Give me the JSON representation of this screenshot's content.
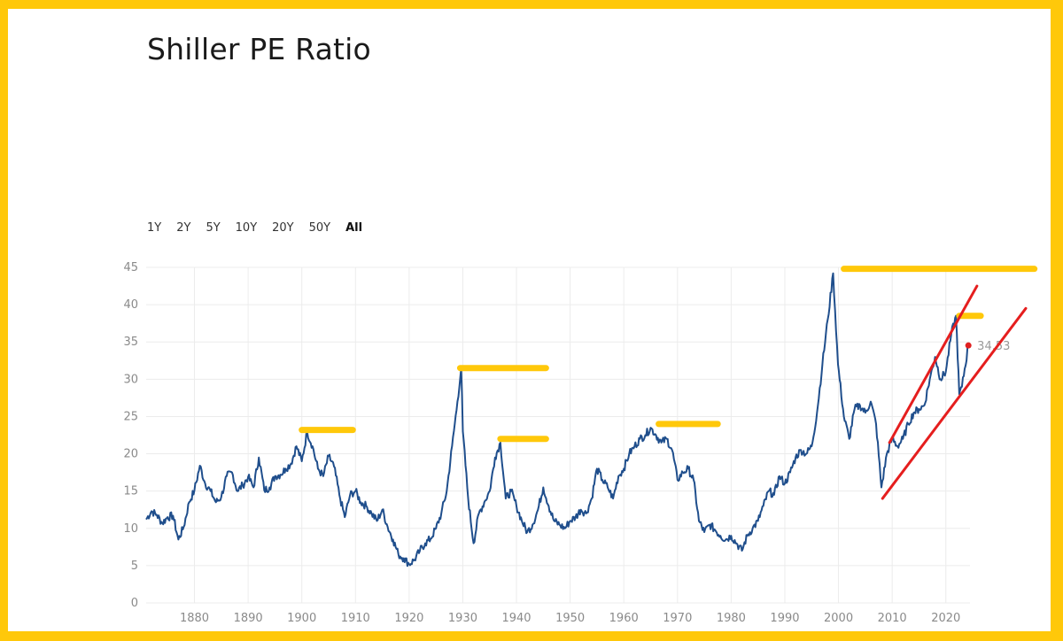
{
  "title": "Shiller PE Ratio",
  "range_buttons": [
    "1Y",
    "2Y",
    "5Y",
    "10Y",
    "20Y",
    "50Y",
    "All"
  ],
  "active_range": "All",
  "colors": {
    "line": "#1f4e8c",
    "grid": "#ececec",
    "last_point": "#e02020",
    "highlight": "#ffc80a",
    "trend": "#e51e1e",
    "frame": "#ffc80a"
  },
  "chart_data": {
    "type": "line",
    "title": "Shiller PE Ratio",
    "xlabel": "",
    "ylabel": "",
    "xlim": [
      1871,
      2024.5
    ],
    "ylim": [
      0,
      45
    ],
    "x_ticks": [
      1880,
      1890,
      1900,
      1910,
      1920,
      1930,
      1940,
      1950,
      1960,
      1970,
      1980,
      1990,
      2000,
      2010,
      2020
    ],
    "y_ticks": [
      0,
      5,
      10,
      15,
      20,
      25,
      30,
      35,
      40,
      45
    ],
    "grid": true,
    "last_value": {
      "x": 2024.2,
      "y": 34.53,
      "label": "34.53"
    },
    "series": [
      {
        "x": [
          1871,
          1872,
          1873,
          1874,
          1875,
          1876,
          1877,
          1878,
          1879,
          1880,
          1881,
          1882,
          1883,
          1884,
          1885,
          1886,
          1887,
          1888,
          1889,
          1890,
          1891,
          1892,
          1893,
          1894,
          1895,
          1896,
          1897,
          1898,
          1899,
          1900,
          1901,
          1902,
          1903,
          1904,
          1905,
          1906,
          1907,
          1908,
          1909,
          1910,
          1911,
          1912,
          1913,
          1914,
          1915,
          1916,
          1917,
          1918,
          1919,
          1920,
          1921,
          1922,
          1923,
          1924,
          1925,
          1926,
          1927,
          1928,
          1929,
          1929.7,
          1930,
          1931,
          1932,
          1933,
          1934,
          1935,
          1936,
          1937,
          1938,
          1939,
          1940,
          1941,
          1942,
          1943,
          1944,
          1945,
          1946,
          1947,
          1948,
          1949,
          1950,
          1951,
          1952,
          1953,
          1954,
          1955,
          1956,
          1957,
          1958,
          1959,
          1960,
          1961,
          1962,
          1963,
          1964,
          1965,
          1966,
          1967,
          1968,
          1969,
          1970,
          1971,
          1972,
          1973,
          1974,
          1975,
          1976,
          1977,
          1978,
          1979,
          1980,
          1981,
          1982,
          1983,
          1984,
          1985,
          1986,
          1987,
          1988,
          1989,
          1990,
          1991,
          1992,
          1993,
          1994,
          1995,
          1996,
          1997,
          1998,
          1999,
          1999.9,
          2001,
          2002,
          2003,
          2004,
          2005,
          2006,
          2007,
          2008,
          2009,
          2010,
          2011,
          2012,
          2013,
          2014,
          2015,
          2016,
          2017,
          2018,
          2019,
          2020,
          2021,
          2021.9,
          2022.5,
          2023,
          2024.2
        ],
        "y": [
          11.2,
          12.3,
          11.8,
          10.7,
          11.5,
          11.7,
          8.5,
          10.2,
          13.5,
          15.1,
          18.4,
          16.0,
          15.0,
          13.5,
          14.2,
          17.0,
          17.5,
          15.0,
          15.8,
          16.9,
          15.5,
          19.5,
          15.1,
          15.5,
          17.0,
          17.2,
          18.0,
          18.7,
          21.0,
          19.0,
          22.9,
          21.0,
          18.0,
          17.0,
          19.7,
          18.3,
          14.5,
          11.5,
          14.5,
          15.0,
          13.5,
          13.0,
          12.0,
          11.0,
          12.5,
          10.2,
          8.5,
          6.5,
          6.0,
          5.2,
          5.8,
          7.0,
          8.0,
          8.6,
          10.0,
          12.0,
          15.0,
          21.0,
          27.0,
          31.5,
          23.0,
          14.0,
          8.0,
          12.0,
          13.5,
          15.0,
          19.5,
          21.5,
          14.0,
          15.0,
          13.0,
          11.0,
          9.5,
          10.5,
          12.5,
          15.5,
          13.0,
          11.0,
          10.5,
          10.0,
          11.0,
          11.5,
          12.5,
          12.0,
          14.0,
          18.0,
          16.5,
          15.5,
          14.0,
          17.0,
          18.0,
          20.0,
          21.0,
          22.0,
          22.5,
          23.5,
          22.5,
          21.5,
          22.0,
          20.5,
          16.5,
          17.5,
          18.0,
          16.5,
          11.0,
          9.5,
          10.5,
          9.8,
          9.0,
          8.5,
          9.0,
          8.0,
          7.0,
          9.0,
          10.0,
          11.0,
          13.0,
          15.0,
          14.5,
          17.0,
          16.0,
          17.5,
          19.5,
          20.5,
          20.0,
          21.0,
          25.5,
          32.0,
          38.0,
          44.2,
          32.0,
          25.0,
          22.0,
          26.0,
          26.5,
          25.5,
          27.0,
          24.0,
          15.5,
          20.0,
          22.0,
          21.0,
          22.0,
          24.0,
          25.5,
          26.0,
          26.5,
          30.0,
          33.0,
          30.0,
          31.0,
          36.0,
          38.5,
          28.0,
          29.0,
          34.53
        ]
      }
    ]
  },
  "annotations": {
    "highlights": [
      {
        "x_start": 1900,
        "x_end": 1909.5,
        "y": 23.2
      },
      {
        "x_start": 1929.5,
        "x_end": 1945.5,
        "y": 31.5
      },
      {
        "x_start": 1937,
        "x_end": 1945.5,
        "y": 22.0
      },
      {
        "x_start": 1966.5,
        "x_end": 1977.5,
        "y": 24.0
      },
      {
        "x_start": 2001,
        "x_end": 2036.5,
        "y": 44.8
      },
      {
        "x_start": 2022.5,
        "x_end": 2026.5,
        "y": 38.5
      }
    ],
    "trendlines": [
      {
        "x1": 2009.5,
        "y1": 21.5,
        "x2": 2025.8,
        "y2": 42.5
      },
      {
        "x1": 2008.2,
        "y1": 14.0,
        "x2": 2034.9,
        "y2": 39.5
      }
    ]
  }
}
